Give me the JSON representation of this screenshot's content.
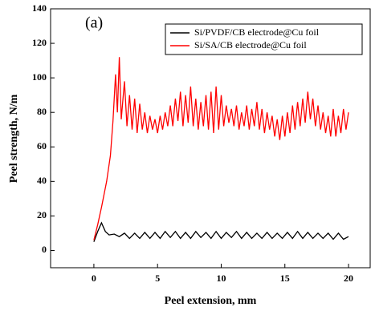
{
  "chart_data": {
    "type": "line",
    "annotation": "(a)",
    "xlabel": "Peel extension, mm",
    "ylabel": "Peel strength, N/m",
    "xlim": [
      -3.4,
      21.7
    ],
    "xticks": [
      0,
      5,
      10,
      15,
      20
    ],
    "ylim": [
      -10,
      140
    ],
    "yticks": [
      0,
      20,
      40,
      60,
      80,
      100,
      120,
      140
    ],
    "legend": "upper right",
    "series": [
      {
        "name": "Si/PVDF/CB electrode@Cu foil",
        "color": "#000000",
        "x": [
          0,
          0.3,
          0.6,
          0.9,
          1.2,
          1.6,
          2.0,
          2.4,
          2.8,
          3.2,
          3.6,
          4.0,
          4.4,
          4.8,
          5.2,
          5.6,
          6.0,
          6.4,
          6.8,
          7.2,
          7.6,
          8.0,
          8.4,
          8.8,
          9.2,
          9.6,
          10.0,
          10.4,
          10.8,
          11.2,
          11.6,
          12.0,
          12.4,
          12.8,
          13.2,
          13.6,
          14.0,
          14.4,
          14.8,
          15.2,
          15.6,
          16.0,
          16.4,
          16.8,
          17.2,
          17.6,
          18.0,
          18.4,
          18.8,
          19.2,
          19.6,
          20.0
        ],
        "values": [
          5,
          11,
          16,
          11,
          9,
          9.5,
          8,
          10,
          7,
          10,
          7,
          10.5,
          7,
          10.5,
          7,
          11,
          7.5,
          11,
          7,
          10.5,
          7,
          11,
          7.5,
          10.5,
          7,
          11,
          7,
          10.5,
          7.5,
          11,
          7,
          10.5,
          7,
          10,
          7,
          10.5,
          7,
          10,
          7,
          10.5,
          7,
          11,
          7,
          10.5,
          7,
          10,
          7,
          10,
          6.5,
          10,
          6.5,
          8
        ]
      },
      {
        "name": "Si/SA/CB electrode@Cu foil",
        "color": "#ff0000",
        "x": [
          0,
          0.3,
          0.6,
          1,
          1.3,
          1.5,
          1.7,
          1.85,
          2.0,
          2.15,
          2.4,
          2.6,
          2.8,
          3.0,
          3.2,
          3.4,
          3.6,
          3.8,
          4.0,
          4.2,
          4.4,
          4.6,
          4.8,
          5.0,
          5.2,
          5.4,
          5.6,
          5.8,
          6.0,
          6.2,
          6.4,
          6.6,
          6.8,
          7.0,
          7.2,
          7.4,
          7.6,
          7.8,
          8.0,
          8.2,
          8.4,
          8.6,
          8.8,
          9.0,
          9.2,
          9.4,
          9.6,
          9.8,
          10.0,
          10.2,
          10.4,
          10.6,
          10.8,
          11.0,
          11.2,
          11.4,
          11.6,
          11.8,
          12.0,
          12.2,
          12.4,
          12.6,
          12.8,
          13.0,
          13.2,
          13.4,
          13.6,
          13.8,
          14.0,
          14.2,
          14.4,
          14.6,
          14.8,
          15.0,
          15.2,
          15.4,
          15.6,
          15.8,
          16.0,
          16.2,
          16.4,
          16.6,
          16.8,
          17.0,
          17.2,
          17.4,
          17.6,
          17.8,
          18.0,
          18.2,
          18.4,
          18.6,
          18.8,
          19.0,
          19.2,
          19.4,
          19.6,
          19.8,
          20.0
        ],
        "values": [
          6,
          15,
          25,
          40,
          55,
          75,
          102,
          80,
          112,
          76,
          98,
          72,
          90,
          70,
          88,
          68,
          85,
          70,
          80,
          68,
          78,
          70,
          76,
          68,
          78,
          70,
          80,
          72,
          84,
          72,
          88,
          75,
          92,
          72,
          90,
          74,
          95,
          72,
          88,
          70,
          86,
          72,
          90,
          70,
          92,
          68,
          95,
          70,
          90,
          72,
          84,
          74,
          82,
          72,
          84,
          70,
          80,
          72,
          84,
          70,
          82,
          72,
          86,
          70,
          82,
          68,
          80,
          70,
          78,
          66,
          76,
          64,
          78,
          66,
          80,
          68,
          84,
          70,
          86,
          72,
          88,
          74,
          92,
          76,
          88,
          72,
          84,
          70,
          80,
          68,
          78,
          66,
          82,
          66,
          78,
          68,
          82,
          70,
          80
        ]
      }
    ]
  }
}
